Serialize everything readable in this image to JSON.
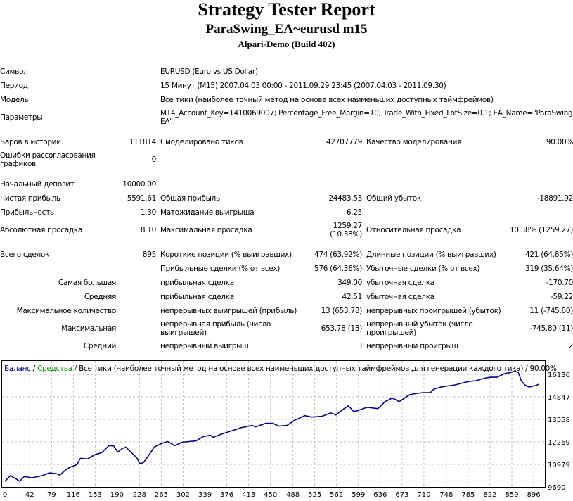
{
  "header": {
    "title": "Strategy Tester Report",
    "subtitle": "ParaSwing_EA~eurusd m15",
    "server": "Alpari-Demo (Build 402)"
  },
  "info": [
    {
      "label": "Символ",
      "value": "EURUSD (Euro vs US Dollar)"
    },
    {
      "label": "Период",
      "value": "15 Минут (M15) 2007.04.03 00:00 - 2011.09.29 23:45 (2007.04.03 - 2011.09.30)"
    },
    {
      "label": "Модель",
      "value": "Все тики (наиболее точный метод на основе всех наименьших доступных таймфреймов)"
    },
    {
      "label": "Параметры",
      "value": "MT4_Account_Key=1410069007; Percentage_Free_Margin=10; Trade_With_Fixed_LotSize=0.1; EA_Name=\"ParaSwing EA\";"
    }
  ],
  "stats": [
    {
      "cells": [
        "Баров в истории",
        "111814",
        "Смоделировано тиков",
        "42707779",
        "Качество моделирования",
        "90.00%"
      ]
    },
    {
      "cells": [
        "Ошибки рассогласования графиков",
        "0",
        "",
        "",
        "",
        ""
      ],
      "tall": true
    },
    {
      "spacer": true
    },
    {
      "cells": [
        "Начальный депозит",
        "10000.00",
        "",
        "",
        "",
        ""
      ]
    },
    {
      "cells": [
        "Чистая прибыль",
        "5591.61",
        "Общая прибыль",
        "24483.53",
        "Общий убыток",
        "-18891.92"
      ]
    },
    {
      "cells": [
        "Прибыльность",
        "1.30",
        "Матожидание выигрыша",
        "6.25",
        "",
        ""
      ]
    },
    {
      "cells": [
        "Абсолютная просадка",
        "8.10",
        "Максимальная просадка",
        "1259.27 (10.38%)",
        "Относительная просадка",
        "10.38% (1259.27)"
      ],
      "tall": true
    },
    {
      "spacer": true
    },
    {
      "cells": [
        "Всего сделок",
        "895",
        "Короткие позиции (% выигравших)",
        "474 (63.92%)",
        "Длинные позиции (% выигравших)",
        "421 (64.85%)"
      ]
    },
    {
      "cells": [
        "",
        "",
        "Прибыльные сделки (% от всех)",
        "576 (64.36%)",
        "Убыточные сделки (% от всех)",
        "319 (35.64%)"
      ]
    },
    {
      "cells": [
        "Самая большая",
        "",
        "прибыльная сделка",
        "349.00",
        "убыточная сделка",
        "-170.70"
      ],
      "right": true
    },
    {
      "cells": [
        "Средняя",
        "",
        "прибыльная сделка",
        "42.51",
        "убыточная сделка",
        "-59.22"
      ],
      "right": true
    },
    {
      "cells": [
        "Максимальное количество",
        "",
        "непрерывных выигрышей (прибыль)",
        "13 (653.78)",
        "непрерывных проигрышей (убыток)",
        "11 (-745.80)"
      ],
      "right": true
    },
    {
      "cells": [
        "Максимальная",
        "",
        "непрерывная прибыль (число выигрышей)",
        "653.78 (13)",
        "непрерывный убыток (число проигрышей)",
        "-745.80 (11)"
      ],
      "right": true,
      "tall": true
    },
    {
      "cells": [
        "Средний",
        "",
        "непрерывный выигрыш",
        "3",
        "непрерывный проигрыш",
        "2"
      ],
      "right": true
    }
  ],
  "colors": {
    "balance": "#00008b",
    "equity": "#00a000",
    "grid": "#c0c0c0"
  },
  "chart_data": {
    "type": "line",
    "legend": {
      "balance": "Баланс",
      "sep1": " / ",
      "equity": "Средства",
      "rest": " / Все тики (наиболее точный метод на основе всех наименьших доступных таймфреймов для генерации каждого тика) / 90.00%"
    },
    "xticks": [
      0,
      42,
      79,
      116,
      153,
      190,
      228,
      265,
      302,
      339,
      376,
      413,
      450,
      488,
      525,
      562,
      599,
      636,
      673,
      710,
      748,
      785,
      822,
      859,
      896
    ],
    "yticks": [
      9690,
      10979,
      12269,
      13558,
      14847,
      16136
    ],
    "xlim": [
      0,
      915
    ],
    "ylim": [
      9690,
      16136
    ],
    "series": [
      {
        "name": "Баланс",
        "points": [
          [
            0,
            10010
          ],
          [
            9,
            10330
          ],
          [
            18,
            10170
          ],
          [
            25,
            10010
          ],
          [
            33,
            10290
          ],
          [
            45,
            10210
          ],
          [
            63,
            10330
          ],
          [
            75,
            10490
          ],
          [
            87,
            10450
          ],
          [
            93,
            10370
          ],
          [
            104,
            10690
          ],
          [
            110,
            10810
          ],
          [
            122,
            10970
          ],
          [
            128,
            11330
          ],
          [
            140,
            11290
          ],
          [
            152,
            11530
          ],
          [
            164,
            11650
          ],
          [
            176,
            12050
          ],
          [
            184,
            12050
          ],
          [
            191,
            11690
          ],
          [
            199,
            11890
          ],
          [
            205,
            11970
          ],
          [
            211,
            11770
          ],
          [
            223,
            11370
          ],
          [
            229,
            11010
          ],
          [
            235,
            11090
          ],
          [
            241,
            11370
          ],
          [
            253,
            11970
          ],
          [
            265,
            12170
          ],
          [
            276,
            12290
          ],
          [
            288,
            12050
          ],
          [
            300,
            12250
          ],
          [
            324,
            12330
          ],
          [
            336,
            12570
          ],
          [
            348,
            12650
          ],
          [
            353,
            12530
          ],
          [
            365,
            12690
          ],
          [
            383,
            12890
          ],
          [
            401,
            13090
          ],
          [
            419,
            13210
          ],
          [
            425,
            13130
          ],
          [
            442,
            13330
          ],
          [
            454,
            13330
          ],
          [
            464,
            13170
          ],
          [
            478,
            13210
          ],
          [
            490,
            13490
          ],
          [
            508,
            13770
          ],
          [
            514,
            13730
          ],
          [
            520,
            13690
          ],
          [
            537,
            13730
          ],
          [
            552,
            13930
          ],
          [
            561,
            13810
          ],
          [
            573,
            14130
          ],
          [
            582,
            14330
          ],
          [
            591,
            14010
          ],
          [
            597,
            14050
          ],
          [
            614,
            14250
          ],
          [
            632,
            14170
          ],
          [
            644,
            14570
          ],
          [
            656,
            14770
          ],
          [
            662,
            14690
          ],
          [
            668,
            14570
          ],
          [
            686,
            14970
          ],
          [
            698,
            15050
          ],
          [
            709,
            15090
          ],
          [
            721,
            15090
          ],
          [
            727,
            15290
          ],
          [
            739,
            15410
          ],
          [
            763,
            15530
          ],
          [
            786,
            15730
          ],
          [
            798,
            15770
          ],
          [
            810,
            15890
          ],
          [
            822,
            15970
          ],
          [
            834,
            15970
          ],
          [
            846,
            16170
          ],
          [
            858,
            16250
          ],
          [
            864,
            16330
          ],
          [
            870,
            16250
          ],
          [
            875,
            15770
          ],
          [
            881,
            15530
          ],
          [
            888,
            15410
          ],
          [
            899,
            15490
          ],
          [
            905,
            15570
          ]
        ]
      }
    ]
  }
}
